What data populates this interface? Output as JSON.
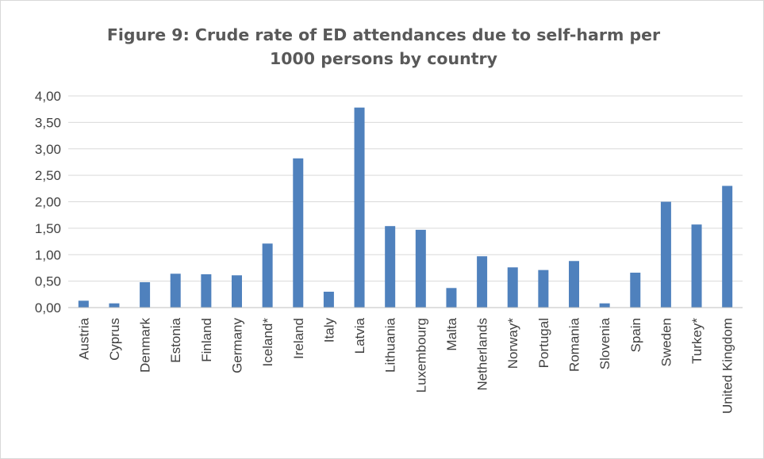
{
  "chart_data": {
    "type": "bar",
    "title": "Figure 9: Crude rate of ED attendances due to self-harm per 1000 persons by country",
    "xlabel": "",
    "ylabel": "",
    "ylim": [
      0,
      4
    ],
    "ytick_step": 0.5,
    "ytick_labels": [
      "0,00",
      "0,50",
      "1,00",
      "1,50",
      "2,00",
      "2,50",
      "3,00",
      "3,50",
      "4,00"
    ],
    "grid": true,
    "legend": "none",
    "bar_color": "#4f81bd",
    "categories": [
      "Austria",
      "Cyprus",
      "Denmark",
      "Estonia",
      "Finland",
      "Germany",
      "Iceland*",
      "Ireland",
      "Italy",
      "Latvia",
      "Lithuania",
      "Luxembourg",
      "Malta",
      "Netherlands",
      "Norway*",
      "Portugal",
      "Romania",
      "Slovenia",
      "Spain",
      "Sweden",
      "Turkey*",
      "United Kingdom"
    ],
    "values": [
      0.13,
      0.08,
      0.48,
      0.64,
      0.63,
      0.61,
      1.21,
      2.82,
      0.3,
      3.78,
      1.54,
      1.47,
      0.37,
      0.97,
      0.76,
      0.71,
      0.88,
      0.08,
      0.66,
      2.0,
      1.57,
      2.3
    ]
  }
}
